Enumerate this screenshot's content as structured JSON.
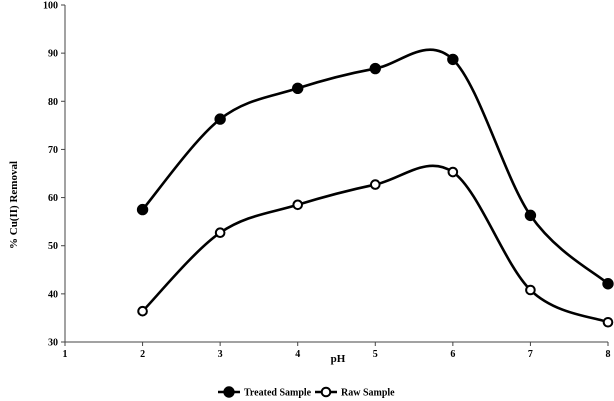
{
  "chart_data": {
    "type": "line",
    "title": "",
    "xlabel": "pH",
    "ylabel": "% Cu(II) Removal",
    "xlim": [
      1,
      8
    ],
    "ylim": [
      30,
      100
    ],
    "xticks": [
      1,
      2,
      3,
      4,
      5,
      6,
      7,
      8
    ],
    "yticks": [
      30,
      40,
      50,
      60,
      70,
      80,
      90,
      100
    ],
    "grid": false,
    "smooth": true,
    "legend_position": "bottom-center",
    "x": [
      2,
      3,
      4,
      5,
      6,
      7,
      8
    ],
    "series": [
      {
        "name": "Treated Sample",
        "marker": "filled-circle",
        "values": [
          57.5,
          76.3,
          82.7,
          86.8,
          88.7,
          56.3,
          42.1
        ]
      },
      {
        "name": "Raw Sample",
        "marker": "open-circle",
        "values": [
          36.4,
          52.7,
          58.5,
          62.7,
          65.3,
          40.8,
          34.1
        ]
      }
    ]
  }
}
